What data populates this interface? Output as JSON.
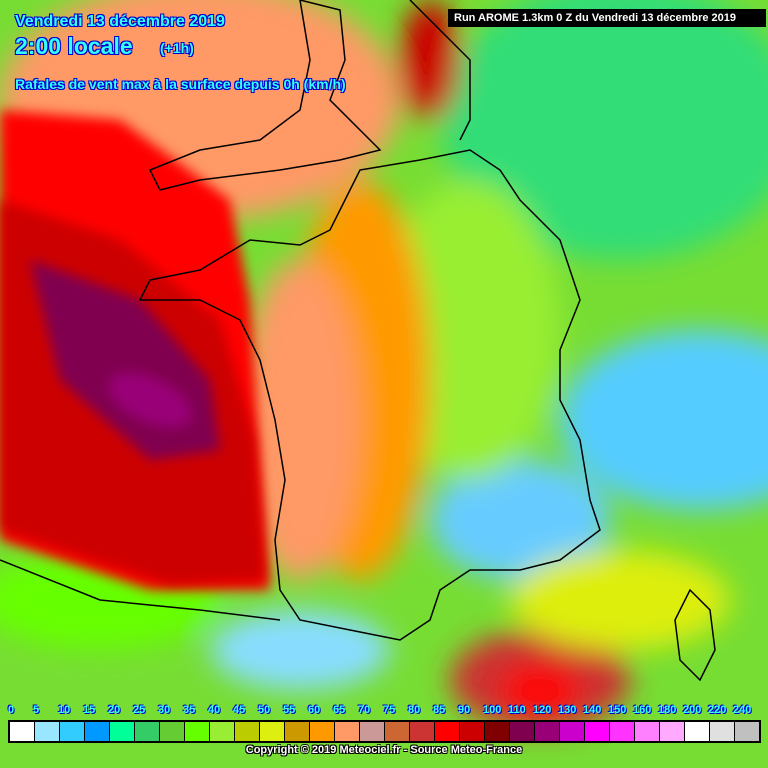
{
  "header": {
    "date": "Vendredi 13 décembre 2019",
    "time": "2:00 locale",
    "offset": "(+1h)",
    "parameter": "Rafales de vent max à la surface depuis 0h (km/h)",
    "run": "Run AROME 1.3km 0 Z du Vendredi 13 décembre 2019"
  },
  "legend": {
    "unit": "km/h",
    "labels": [
      "0",
      "5",
      "10",
      "15",
      "20",
      "25",
      "30",
      "35",
      "40",
      "45",
      "50",
      "55",
      "60",
      "65",
      "70",
      "75",
      "80",
      "85",
      "90",
      "100",
      "110",
      "120",
      "130",
      "140",
      "150",
      "160",
      "180",
      "200",
      "220",
      "240"
    ],
    "colors": [
      "#ffffff",
      "#99e6ff",
      "#33ccff",
      "#0099ff",
      "#00ff99",
      "#33cc66",
      "#66cc33",
      "#66ff00",
      "#99ee33",
      "#bbcc00",
      "#ddee11",
      "#cc9900",
      "#ff9900",
      "#ff9966",
      "#cc9999",
      "#cc6633",
      "#cc3333",
      "#ff0000",
      "#cc0000",
      "#800000",
      "#800050",
      "#990077",
      "#cc00cc",
      "#ff00ff",
      "#ff33ff",
      "#ff80ff",
      "#ffaaff",
      "#ffffff",
      "#e0e0e0",
      "#c0c0c0"
    ]
  },
  "footer": {
    "copyright": "Copyright © 2019 Meteociel.fr - Source Meteo-France"
  }
}
